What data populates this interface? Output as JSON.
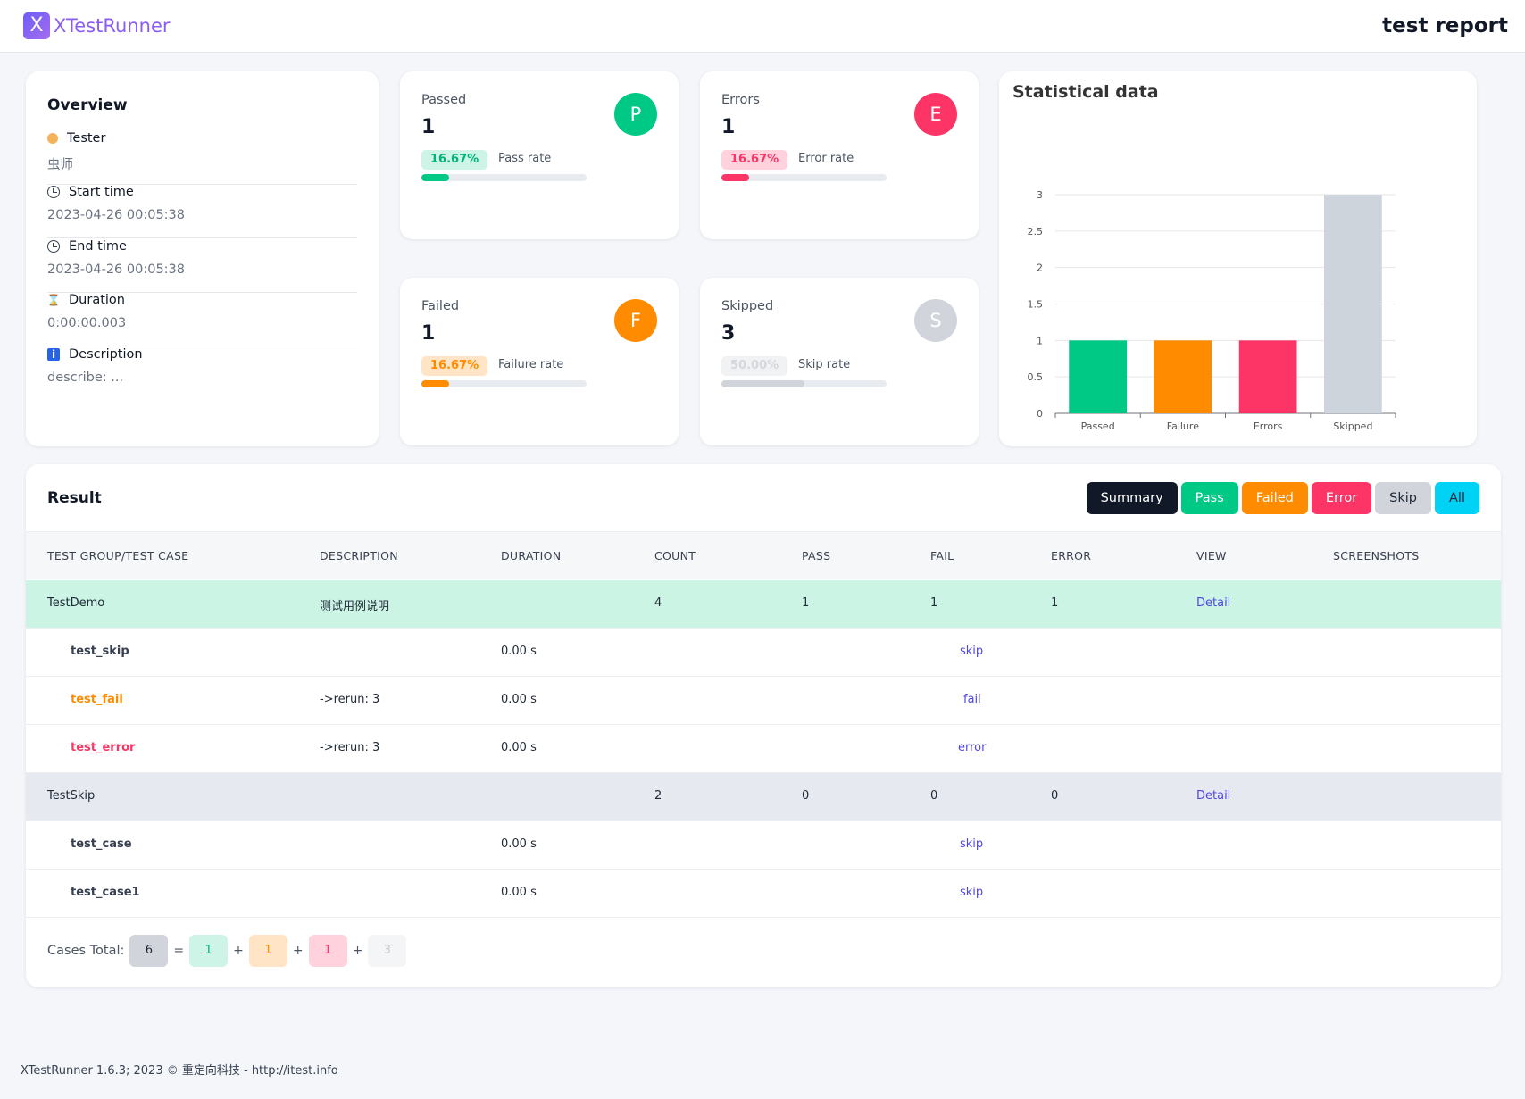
{
  "header": {
    "logo_letter": "X",
    "app_name": "XTestRunner",
    "report_title": "test report"
  },
  "overview": {
    "title": "Overview",
    "items": [
      {
        "icon": "tester-icon",
        "label": "Tester",
        "value": "虫师"
      },
      {
        "icon": "clock-icon",
        "label": "Start time",
        "value": "2023-04-26 00:05:38"
      },
      {
        "icon": "clock-icon",
        "label": "End time",
        "value": "2023-04-26 00:05:38"
      },
      {
        "icon": "hourglass-icon",
        "label": "Duration",
        "value": "0:00:00.003"
      },
      {
        "icon": "info-icon",
        "label": "Description",
        "value": "describe: ..."
      }
    ]
  },
  "stats": {
    "passed": {
      "label": "Passed",
      "value": "1",
      "letter": "P",
      "rate": "16.67%",
      "rate_label": "Pass rate",
      "fraction": 0.1667,
      "color": "#00c986",
      "badge_bg": "#cdf4e6"
    },
    "errors": {
      "label": "Errors",
      "value": "1",
      "letter": "E",
      "rate": "16.67%",
      "rate_label": "Error rate",
      "fraction": 0.1667,
      "color": "#fd3566",
      "badge_bg": "#ffd2dd"
    },
    "failed": {
      "label": "Failed",
      "value": "1",
      "letter": "F",
      "rate": "16.67%",
      "rate_label": "Failure rate",
      "fraction": 0.1667,
      "color": "#ff8c00",
      "badge_bg": "#ffe5c6"
    },
    "skipped": {
      "label": "Skipped",
      "value": "3",
      "letter": "S",
      "rate": "50.00%",
      "rate_label": "Skip rate",
      "fraction": 0.5,
      "color": "#d1d5db",
      "badge_bg": "#f1f2f4",
      "badge_text": "#d4d7dc"
    }
  },
  "chart_data": {
    "type": "bar",
    "title": "Statistical data",
    "categories": [
      "Passed",
      "Failure",
      "Errors",
      "Skipped"
    ],
    "values": [
      1,
      1,
      1,
      3
    ],
    "colors": [
      "#00c986",
      "#ff8c00",
      "#fd3566",
      "#ced4dc"
    ],
    "ylim": [
      0,
      3
    ],
    "yticks": [
      "0",
      "0.5",
      "1",
      "1.5",
      "2",
      "2.5",
      "3"
    ],
    "grid": true,
    "xlabel": "",
    "ylabel": ""
  },
  "result": {
    "title": "Result",
    "filters": [
      "Summary",
      "Pass",
      "Failed",
      "Error",
      "Skip",
      "All"
    ],
    "columns": [
      "TEST GROUP/TEST CASE",
      "DESCRIPTION",
      "DURATION",
      "COUNT",
      "PASS",
      "FAIL",
      "ERROR",
      "VIEW",
      "SCREENSHOTS"
    ],
    "groups": [
      {
        "name": "TestDemo",
        "description": "测试用例说明",
        "count": "4",
        "pass": "1",
        "fail": "1",
        "error": "1",
        "view": "Detail",
        "status": "pass",
        "cases": [
          {
            "name": "test_skip",
            "status": "skip",
            "description": "",
            "duration": "0.00 s",
            "result": "skip"
          },
          {
            "name": "test_fail",
            "status": "fail",
            "description": "->rerun: 3",
            "duration": "0.00 s",
            "result": "fail"
          },
          {
            "name": "test_error",
            "status": "error",
            "description": "->rerun: 3",
            "duration": "0.00 s",
            "result": "error"
          }
        ]
      },
      {
        "name": "TestSkip",
        "description": "",
        "count": "2",
        "pass": "0",
        "fail": "0",
        "error": "0",
        "view": "Detail",
        "status": "skip",
        "cases": [
          {
            "name": "test_case",
            "status": "skip",
            "description": "",
            "duration": "0.00 s",
            "result": "skip"
          },
          {
            "name": "test_case1",
            "status": "skip",
            "description": "",
            "duration": "0.00 s",
            "result": "skip"
          }
        ]
      }
    ],
    "totals": {
      "label": "Cases Total:",
      "total": "6",
      "pass": "1",
      "fail": "1",
      "error": "1",
      "skip": "3",
      "plus": "+",
      "equals": "="
    }
  },
  "footer": {
    "text": "XTestRunner 1.6.3; 2023 © 重定向科技 - http://itest.info"
  }
}
